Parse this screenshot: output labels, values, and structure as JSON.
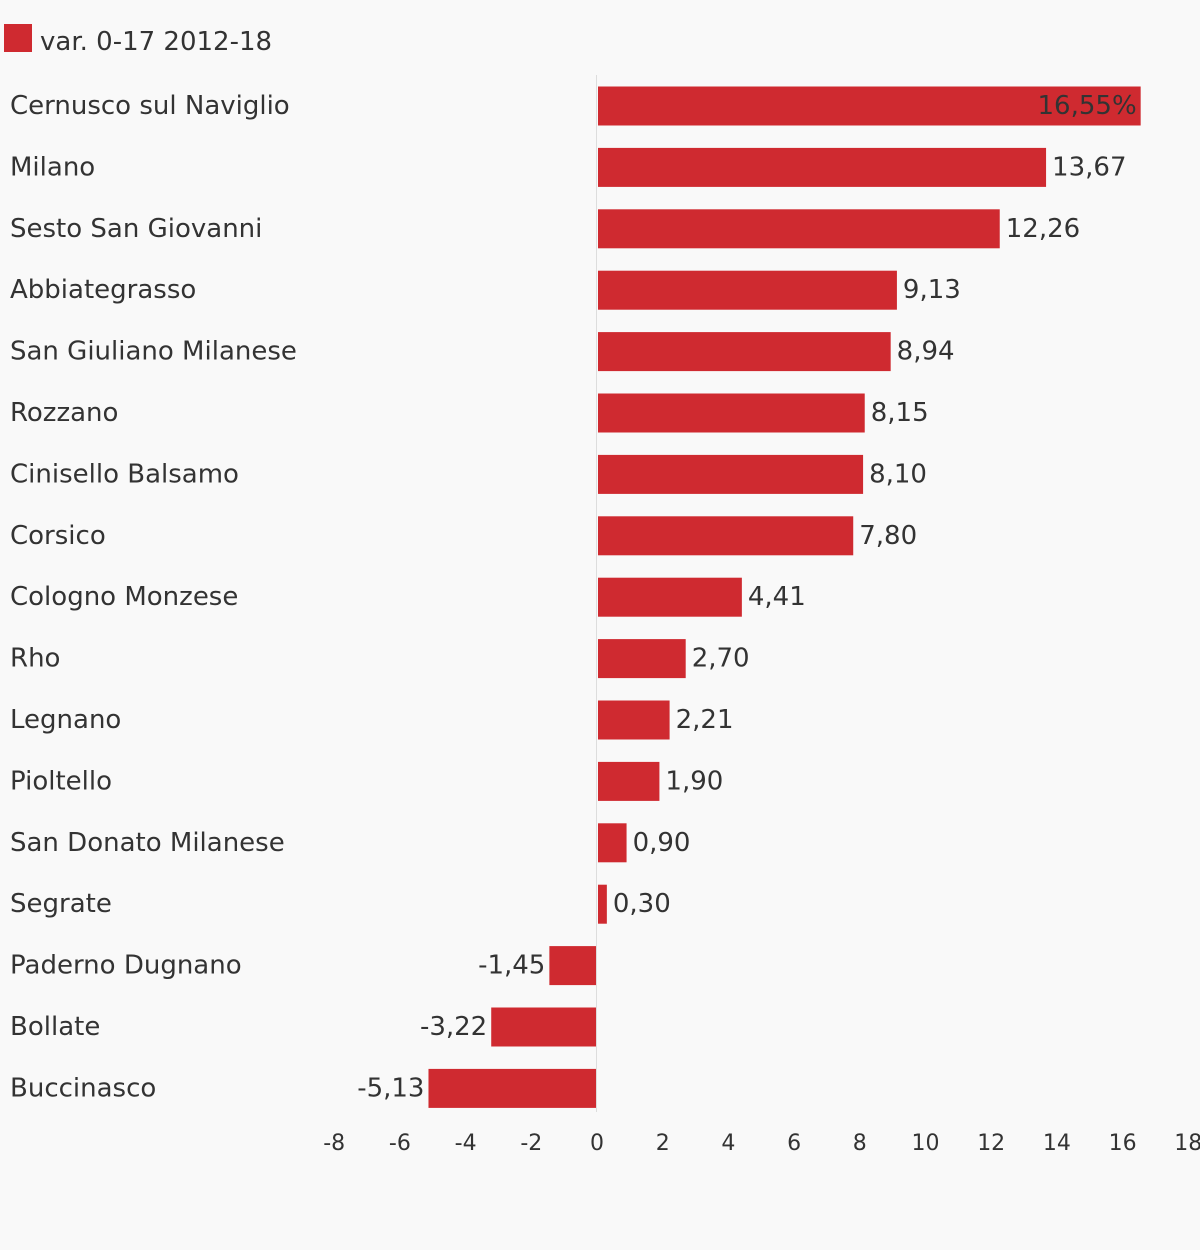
{
  "chart_data": {
    "type": "bar",
    "orientation": "horizontal",
    "legend": {
      "placement": "top-left",
      "entries": [
        {
          "name": "var. 0-17 2012-18",
          "color": "#cf2a30"
        }
      ]
    },
    "categories": [
      "Cernusco sul Naviglio",
      "Milano",
      "Sesto San Giovanni",
      "Abbiategrasso",
      "San Giuliano Milanese",
      "Rozzano",
      "Cinisello Balsamo",
      "Corsico",
      "Cologno Monzese",
      "Rho",
      "Legnano",
      "Pioltello",
      "San Donato Milanese",
      "Segrate",
      "Paderno Dugnano",
      "Bollate",
      "Buccinasco"
    ],
    "series": [
      {
        "name": "var. 0-17 2012-18",
        "color": "#cf2a30",
        "values": [
          16.55,
          13.67,
          12.26,
          9.13,
          8.94,
          8.15,
          8.1,
          7.8,
          4.41,
          2.7,
          2.21,
          1.9,
          0.9,
          0.3,
          -1.45,
          -3.22,
          -5.13
        ],
        "labels": [
          "16,55%",
          "13,67",
          "12,26",
          "9,13",
          "8,94",
          "8,15",
          "8,10",
          "7,80",
          "4,41",
          "2,70",
          "2,21",
          "1,90",
          "0,90",
          "0,30",
          "-1,45",
          "-3,22",
          "-5,13"
        ]
      }
    ],
    "x_ticks": [
      "-8",
      "-6",
      "-4",
      "-2",
      "0",
      "2",
      "4",
      "6",
      "8",
      "10",
      "12",
      "14",
      "16",
      "18"
    ],
    "xlim": [
      -8,
      18
    ],
    "title": "",
    "xlabel": "",
    "ylabel": "",
    "grid": false,
    "zero_line_color": "#dddddd"
  }
}
